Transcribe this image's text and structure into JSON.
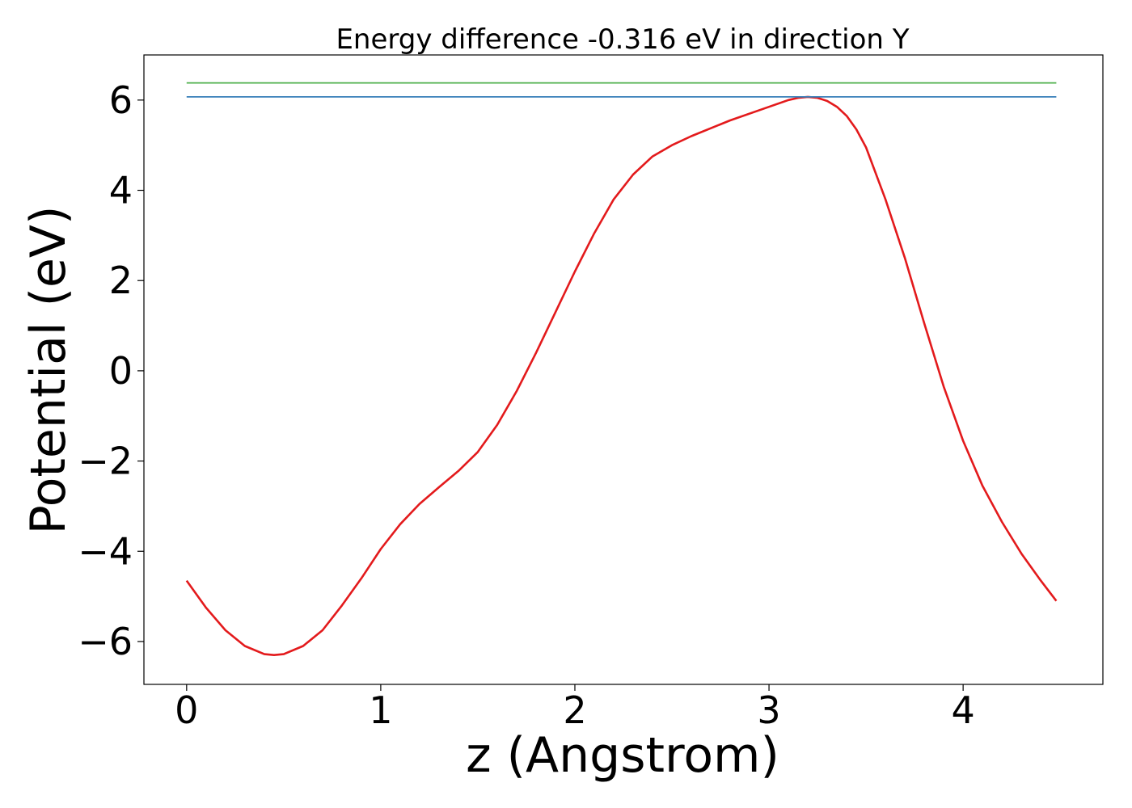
{
  "chart_data": {
    "type": "line",
    "title": "Energy difference -0.316 eV in direction Y",
    "xlabel": "z (Angstrom)",
    "ylabel": "Potential (eV)",
    "xlim": [
      -0.22,
      4.72
    ],
    "ylim": [
      -6.95,
      7.0
    ],
    "x_ticks": [
      0,
      1,
      2,
      3,
      4
    ],
    "x_tick_labels": [
      "0",
      "1",
      "2",
      "3",
      "4"
    ],
    "y_ticks": [
      6,
      4,
      2,
      0,
      -2,
      -4,
      -6
    ],
    "y_tick_labels": [
      "6",
      "4",
      "2",
      "0",
      "−2",
      "−4",
      "−6"
    ],
    "grid": false,
    "series": [
      {
        "color": "#e31a1c",
        "x": [
          0,
          0.1,
          0.2,
          0.3,
          0.4,
          0.45,
          0.5,
          0.6,
          0.7,
          0.8,
          0.9,
          1.0,
          1.1,
          1.2,
          1.3,
          1.4,
          1.5,
          1.6,
          1.7,
          1.8,
          1.9,
          2.0,
          2.1,
          2.2,
          2.3,
          2.4,
          2.5,
          2.6,
          2.8,
          3.0,
          3.1,
          3.15,
          3.2,
          3.25,
          3.3,
          3.35,
          3.4,
          3.45,
          3.5,
          3.6,
          3.7,
          3.8,
          3.9,
          4.0,
          4.1,
          4.2,
          4.3,
          4.4,
          4.48
        ],
        "y": [
          -4.65,
          -5.25,
          -5.75,
          -6.1,
          -6.28,
          -6.3,
          -6.28,
          -6.1,
          -5.75,
          -5.2,
          -4.6,
          -3.95,
          -3.4,
          -2.95,
          -2.58,
          -2.22,
          -1.8,
          -1.2,
          -0.45,
          0.4,
          1.3,
          2.2,
          3.05,
          3.8,
          4.35,
          4.75,
          5.0,
          5.2,
          5.55,
          5.85,
          6.0,
          6.05,
          6.07,
          6.05,
          5.98,
          5.85,
          5.65,
          5.35,
          4.95,
          3.8,
          2.5,
          1.05,
          -0.35,
          -1.55,
          -2.55,
          -3.35,
          -4.05,
          -4.65,
          -5.1
        ]
      },
      {
        "color": "#4daf4a",
        "x": [
          0,
          4.48
        ],
        "y": [
          6.38,
          6.38
        ]
      },
      {
        "color": "#377eb8",
        "x": [
          0,
          4.48
        ],
        "y": [
          6.07,
          6.07
        ]
      }
    ]
  }
}
